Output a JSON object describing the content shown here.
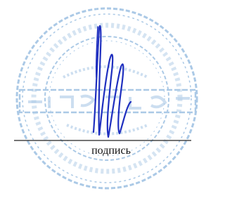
{
  "signature_block": {
    "caption": "подпись"
  }
}
